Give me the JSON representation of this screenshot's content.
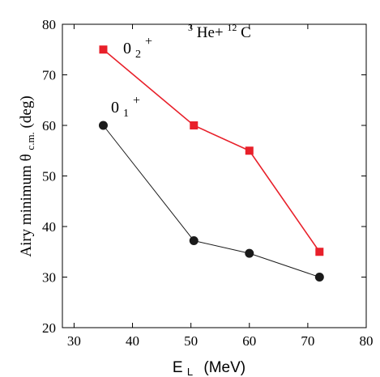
{
  "chart_data": {
    "type": "line",
    "title": "",
    "annotation": {
      "projectile_mass": "3",
      "projectile": "He+",
      "target_mass": "12",
      "target": "C"
    },
    "xlabel": {
      "base": "E",
      "sub": "L",
      "unit": "(MeV)"
    },
    "ylabel": {
      "prefix": "Airy minimum θ",
      "sub": "c.m.",
      "unit": "(deg)"
    },
    "xlim": [
      28,
      80
    ],
    "ylim": [
      20,
      80
    ],
    "xticks": [
      30,
      40,
      50,
      60,
      70,
      80
    ],
    "yticks": [
      20,
      30,
      40,
      50,
      60,
      70,
      80
    ],
    "grid": false,
    "series": [
      {
        "name": "0₂⁺",
        "label": {
          "base": "0",
          "sub": "2",
          "sup": "+"
        },
        "marker": "square",
        "color": "#e8202a",
        "x": [
          35,
          50.5,
          60,
          72
        ],
        "y": [
          75,
          60,
          55,
          35
        ]
      },
      {
        "name": "0₁⁺",
        "label": {
          "base": "0",
          "sub": "1",
          "sup": "+"
        },
        "marker": "circle",
        "color": "#1a1a1a",
        "x": [
          35,
          50.5,
          60,
          72
        ],
        "y": [
          60,
          37.2,
          34.7,
          30
        ]
      }
    ]
  }
}
